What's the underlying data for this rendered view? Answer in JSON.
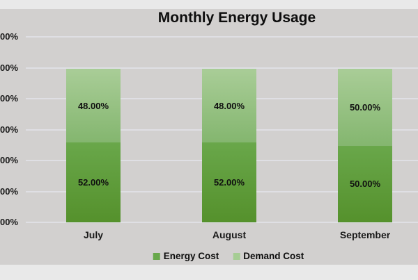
{
  "chart_data": {
    "type": "stacked-bar-100",
    "title": "Monthly Energy Usage",
    "categories": [
      "July",
      "August",
      "September"
    ],
    "series": [
      {
        "name": "Energy Cost",
        "values": [
          0.52,
          0.52,
          0.5
        ],
        "labels": [
          "52.00%",
          "52.00%",
          "50.00%"
        ],
        "color_top": "#69a74a",
        "color_bottom": "#55912c",
        "swatch": "#68a84b"
      },
      {
        "name": "Demand Cost",
        "values": [
          0.48,
          0.48,
          0.5
        ],
        "labels": [
          "48.00%",
          "48.00%",
          "50.00%"
        ],
        "color_top": "#a9cd97",
        "color_bottom": "#84b66f",
        "swatch": "#a6cd94"
      }
    ],
    "y_axis": {
      "tick_labels": [
        "00%",
        "00%",
        "00%",
        "00%",
        "00%",
        "00%",
        "00%"
      ],
      "ylim": [
        0,
        1.2
      ],
      "tick_step": 0.2
    },
    "grid": true,
    "legend_position": "bottom"
  },
  "colors": {
    "page_background": "#e9e9e9",
    "plot_background": "#d2d0cf",
    "gridline": "#dfdfe4",
    "text": "#141414"
  }
}
